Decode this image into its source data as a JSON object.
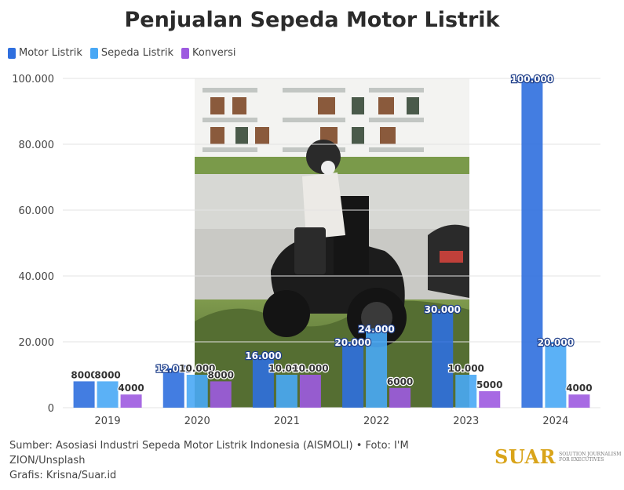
{
  "title": "Penjualan Sepeda Motor Listrik",
  "source_lines": [
    "Sumber: Asosiasi Industri Sepeda Motor Listrik Indonesia (AISMOLI) • Foto: I'M",
    "ZION/Unsplash",
    "Grafis: Krisna/Suar.id"
  ],
  "brand": {
    "logo": "SUAR",
    "tagline_1": "SOLUTION JOURNALISM",
    "tagline_2": "FOR EXECUTIVES"
  },
  "chart_data": {
    "type": "bar",
    "title": "Penjualan Sepeda Motor Listrik",
    "categories": [
      "2019",
      "2020",
      "2021",
      "2022",
      "2023",
      "2024"
    ],
    "series": [
      {
        "name": "Motor Listrik",
        "color": "#2f6fde",
        "values": [
          8000,
          12000,
          16000,
          20000,
          30000,
          100000
        ],
        "labels": [
          "8000",
          "12.000",
          "16.000",
          "20.000",
          "30.000",
          "100.000"
        ]
      },
      {
        "name": "Sepeda Listrik",
        "color": "#49a8f5",
        "values": [
          8000,
          10000,
          10000,
          24000,
          10000,
          20000
        ],
        "labels": [
          "8000",
          "10.000",
          "10.000",
          "24.000",
          "10.000",
          "20.000"
        ]
      },
      {
        "name": "Konversi",
        "color": "#9d5ae0",
        "values": [
          4000,
          8000,
          10000,
          6000,
          5000,
          4000
        ],
        "labels": [
          "4000",
          "8000",
          "10.000",
          "6000",
          "5000",
          "4000"
        ]
      }
    ],
    "ylim": [
      0,
      100000
    ],
    "yticks": [
      0,
      20000,
      40000,
      60000,
      80000,
      100000
    ],
    "ytick_labels": [
      "0",
      "20.000",
      "40.000",
      "60.000",
      "80.000",
      "100.000"
    ],
    "grid": true,
    "legend_position": "top-left",
    "background_image": "photo of a rider wearing a face mask on an electric scooter in front of white buildings"
  }
}
